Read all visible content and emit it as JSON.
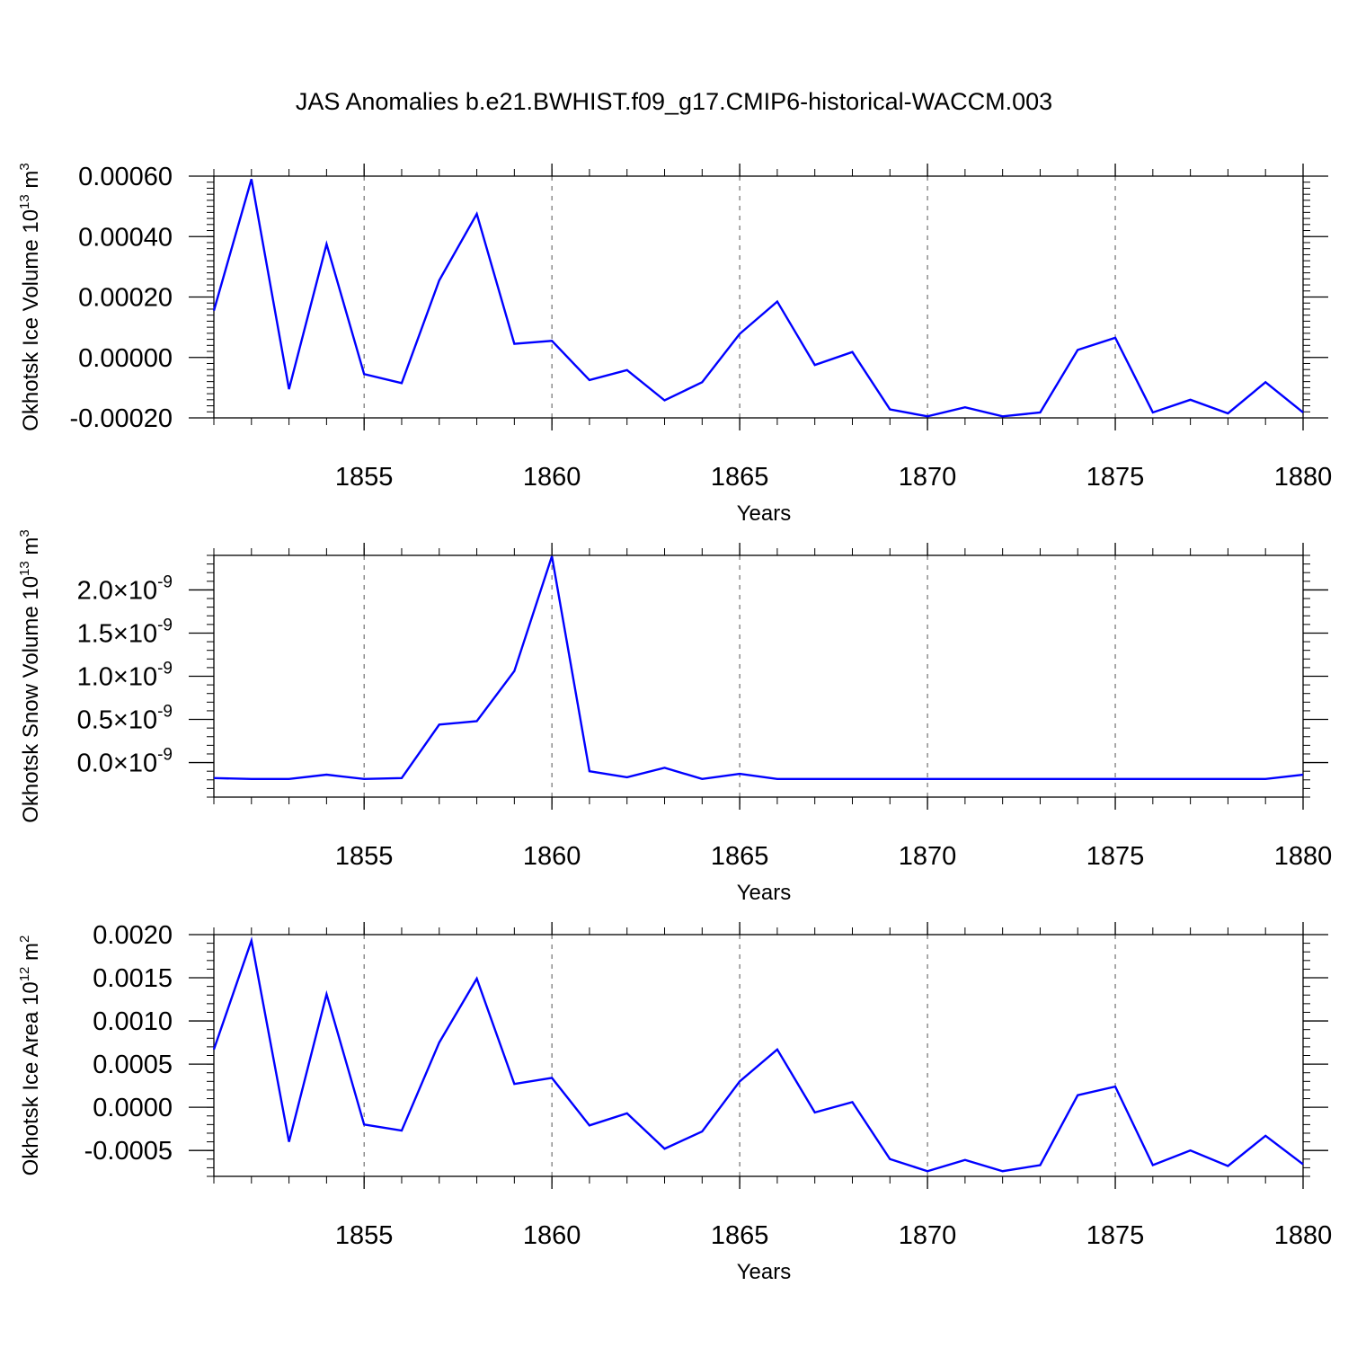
{
  "title": "JAS Anomalies b.e21.BWHIST.f09_g17.CMIP6-historical-WACCM.003",
  "colors": {
    "series": "#0000ff",
    "axis": "#000000",
    "grid": "#555555"
  },
  "chart_data": [
    {
      "type": "line",
      "ylabel": "Okhotsk Ice Volume 10",
      "ylabel_exp": "13",
      "ylabel_unit": " m",
      "ylabel_unit_exp": "3",
      "xlabel": "Years",
      "xlim": [
        1851,
        1880
      ],
      "ylim": [
        -0.0002,
        0.0006
      ],
      "grid": "dashed vertical at major x ticks",
      "xticks": [
        {
          "value": 1855,
          "label": "1855"
        },
        {
          "value": 1860,
          "label": "1860"
        },
        {
          "value": 1865,
          "label": "1865"
        },
        {
          "value": 1870,
          "label": "1870"
        },
        {
          "value": 1875,
          "label": "1875"
        },
        {
          "value": 1880,
          "label": "1880"
        }
      ],
      "yticks": [
        {
          "value": 0.0006,
          "label": "0.00060"
        },
        {
          "value": 0.0004,
          "label": "0.00040"
        },
        {
          "value": 0.0002,
          "label": "0.00020"
        },
        {
          "value": 0.0,
          "label": "0.00000"
        },
        {
          "value": -0.0002,
          "label": "-0.00020"
        }
      ],
      "x": [
        1851,
        1852,
        1853,
        1854,
        1855,
        1856,
        1857,
        1858,
        1859,
        1860,
        1861,
        1862,
        1863,
        1864,
        1865,
        1866,
        1867,
        1868,
        1869,
        1870,
        1871,
        1872,
        1873,
        1874,
        1875,
        1876,
        1877,
        1878,
        1879,
        1880
      ],
      "series": [
        {
          "values": [
            0.000155,
            0.00059,
            -0.000105,
            0.000375,
            -5.5e-05,
            -8.5e-05,
            0.000255,
            0.000475,
            4.5e-05,
            5.5e-05,
            -7.5e-05,
            -4.2e-05,
            -0.000142,
            -8.2e-05,
            7.8e-05,
            0.000185,
            -2.5e-05,
            1.8e-05,
            -0.000172,
            -0.000195,
            -0.000165,
            -0.000195,
            -0.000182,
            2.5e-05,
            6.5e-05,
            -0.000182,
            -0.00014,
            -0.000185,
            -8.2e-05,
            -0.000182
          ]
        }
      ]
    },
    {
      "type": "line",
      "ylabel": "Okhotsk Snow Volume 10",
      "ylabel_exp": "13",
      "ylabel_unit": " m",
      "ylabel_unit_exp": "3",
      "xlabel": "Years",
      "xlim": [
        1851,
        1880
      ],
      "ylim": [
        -4e-10,
        2.4e-09
      ],
      "grid": "dashed vertical at major x ticks",
      "xticks": [
        {
          "value": 1855,
          "label": "1855"
        },
        {
          "value": 1860,
          "label": "1860"
        },
        {
          "value": 1865,
          "label": "1865"
        },
        {
          "value": 1870,
          "label": "1870"
        },
        {
          "value": 1875,
          "label": "1875"
        },
        {
          "value": 1880,
          "label": "1880"
        }
      ],
      "yticks": [
        {
          "value": 2e-09,
          "mantissa": "2.0",
          "times": "×10",
          "exp": "-9"
        },
        {
          "value": 1.5e-09,
          "mantissa": "1.5",
          "times": "×10",
          "exp": "-9"
        },
        {
          "value": 1e-09,
          "mantissa": "1.0",
          "times": "×10",
          "exp": "-9"
        },
        {
          "value": 5e-10,
          "mantissa": "0.5",
          "times": "×10",
          "exp": "-9"
        },
        {
          "value": 0.0,
          "mantissa": "0.0",
          "times": "×10",
          "exp": "-9"
        }
      ],
      "x": [
        1851,
        1852,
        1853,
        1854,
        1855,
        1856,
        1857,
        1858,
        1859,
        1860,
        1861,
        1862,
        1863,
        1864,
        1865,
        1866,
        1867,
        1868,
        1869,
        1870,
        1871,
        1872,
        1873,
        1874,
        1875,
        1876,
        1877,
        1878,
        1879,
        1880
      ],
      "series": [
        {
          "values": [
            -1.8e-10,
            -1.9e-10,
            -1.9e-10,
            -1.4e-10,
            -1.9e-10,
            -1.8e-10,
            4.4e-10,
            4.8e-10,
            1.06e-09,
            2.39e-09,
            -1e-10,
            -1.7e-10,
            -6e-11,
            -1.9e-10,
            -1.3e-10,
            -1.9e-10,
            -1.9e-10,
            -1.9e-10,
            -1.9e-10,
            -1.9e-10,
            -1.9e-10,
            -1.9e-10,
            -1.9e-10,
            -1.9e-10,
            -1.9e-10,
            -1.9e-10,
            -1.9e-10,
            -1.9e-10,
            -1.9e-10,
            -1.4e-10
          ]
        }
      ]
    },
    {
      "type": "line",
      "ylabel": "Okhotsk Ice Area 10",
      "ylabel_exp": "12",
      "ylabel_unit": " m",
      "ylabel_unit_exp": "2",
      "xlabel": "Years",
      "xlim": [
        1851,
        1880
      ],
      "ylim": [
        -0.0008,
        0.002
      ],
      "grid": "dashed vertical at major x ticks",
      "xticks": [
        {
          "value": 1855,
          "label": "1855"
        },
        {
          "value": 1860,
          "label": "1860"
        },
        {
          "value": 1865,
          "label": "1865"
        },
        {
          "value": 1870,
          "label": "1870"
        },
        {
          "value": 1875,
          "label": "1875"
        },
        {
          "value": 1880,
          "label": "1880"
        }
      ],
      "yticks": [
        {
          "value": 0.002,
          "label": "0.0020"
        },
        {
          "value": 0.0015,
          "label": "0.0015"
        },
        {
          "value": 0.001,
          "label": "0.0010"
        },
        {
          "value": 0.0005,
          "label": "0.0005"
        },
        {
          "value": 0.0,
          "label": "0.0000"
        },
        {
          "value": -0.0005,
          "label": "-0.0005"
        }
      ],
      "x": [
        1851,
        1852,
        1853,
        1854,
        1855,
        1856,
        1857,
        1858,
        1859,
        1860,
        1861,
        1862,
        1863,
        1864,
        1865,
        1866,
        1867,
        1868,
        1869,
        1870,
        1871,
        1872,
        1873,
        1874,
        1875,
        1876,
        1877,
        1878,
        1879,
        1880
      ],
      "series": [
        {
          "values": [
            0.00067,
            0.00193,
            -0.0004,
            0.00131,
            -0.0002,
            -0.00027,
            0.00075,
            0.00149,
            0.00027,
            0.00034,
            -0.00021,
            -7e-05,
            -0.00048,
            -0.00028,
            0.0003,
            0.00067,
            -6e-05,
            6e-05,
            -0.0006,
            -0.00074,
            -0.00061,
            -0.00074,
            -0.00067,
            0.00014,
            0.00024,
            -0.00067,
            -0.0005,
            -0.00068,
            -0.00033,
            -0.00066
          ]
        }
      ]
    }
  ]
}
